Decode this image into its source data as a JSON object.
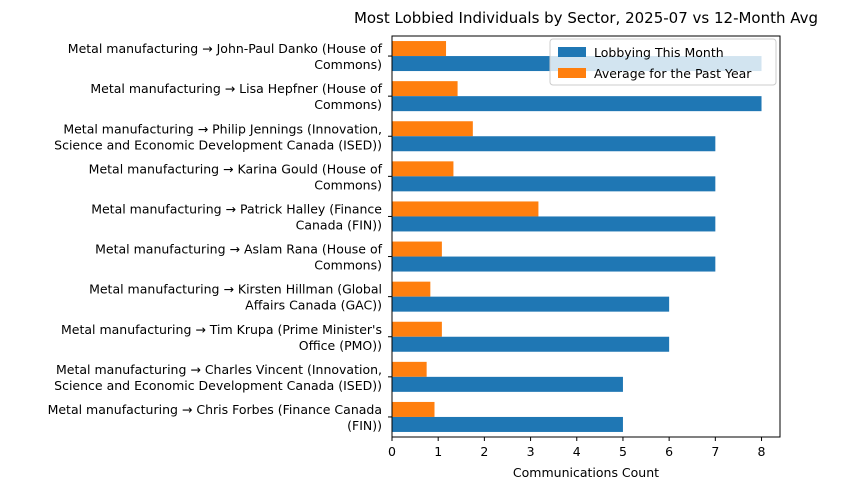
{
  "chart_data": {
    "type": "bar",
    "orientation": "horizontal",
    "title": "Most Lobbied Individuals by Sector, 2025-07 vs 12-Month Avg",
    "xlabel": "Communications Count",
    "ylabel": "",
    "xlim": [
      0,
      8.4
    ],
    "xticks": [
      0,
      1,
      2,
      3,
      4,
      5,
      6,
      7,
      8
    ],
    "grid": false,
    "legend_position": "top-right",
    "categories": [
      [
        "Metal manufacturing → John-Paul Danko (House of",
        "Commons)"
      ],
      [
        "Metal manufacturing → Lisa Hepfner (House of",
        "Commons)"
      ],
      [
        "Metal manufacturing → Philip Jennings (Innovation,",
        "Science and Economic Development Canada (ISED))"
      ],
      [
        "Metal manufacturing → Karina Gould (House of",
        "Commons)"
      ],
      [
        "Metal manufacturing → Patrick Halley (Finance",
        "Canada (FIN))"
      ],
      [
        "Metal manufacturing → Aslam Rana (House of",
        "Commons)"
      ],
      [
        "Metal manufacturing → Kirsten Hillman (Global",
        "Affairs Canada (GAC))"
      ],
      [
        "Metal manufacturing → Tim Krupa (Prime Minister's",
        "Office (PMO))"
      ],
      [
        "Metal manufacturing → Charles Vincent (Innovation,",
        "Science and Economic Development Canada (ISED))"
      ],
      [
        "Metal manufacturing → Chris Forbes (Finance Canada",
        "(FIN))"
      ]
    ],
    "series": [
      {
        "name": "Lobbying This Month",
        "color": "#1f77b4",
        "values": [
          8,
          8,
          7,
          7,
          7,
          7,
          6,
          6,
          5,
          5
        ]
      },
      {
        "name": "Average for the Past Year",
        "color": "#ff7f0e",
        "values": [
          1.17,
          1.42,
          1.75,
          1.33,
          3.17,
          1.08,
          0.83,
          1.08,
          0.75,
          0.92
        ]
      }
    ]
  }
}
